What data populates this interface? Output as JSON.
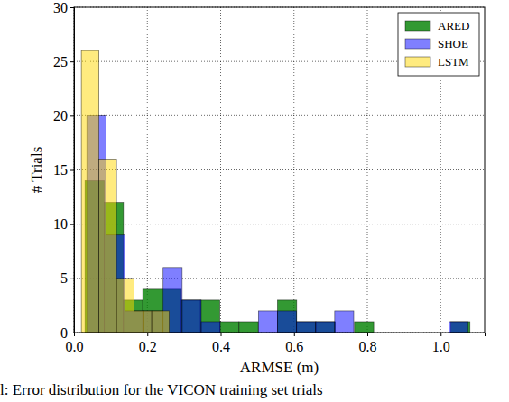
{
  "chart_data": {
    "type": "histogram",
    "caption": "l: Error distribution for the VICON training set trials",
    "x_label": "ARMSE (m)",
    "y_label": "# Trials",
    "xlim": [
      0,
      1.12
    ],
    "ylim": [
      0,
      30
    ],
    "xticks": [
      {
        "value": 0,
        "label": "0.0"
      },
      {
        "value": 0.2,
        "label": "0.2"
      },
      {
        "value": 0.4,
        "label": "0.4"
      },
      {
        "value": 0.6,
        "label": "0.6"
      },
      {
        "value": 0.8,
        "label": "0.8"
      },
      {
        "value": 1,
        "label": "1.0"
      }
    ],
    "yticks": [
      0,
      5,
      10,
      15,
      20,
      25,
      30
    ],
    "grid": true,
    "legend": "upper right",
    "series": [
      {
        "name": "ARED",
        "color": "#008000",
        "bins": [
          0.03,
          0.0825,
          0.135,
          0.1875,
          0.24,
          0.2925,
          0.345,
          0.3975,
          0.45,
          0.5025,
          0.555,
          0.6075,
          0.66,
          0.7125,
          0.765,
          0.8175,
          0.87,
          0.9225,
          0.975,
          1.0275,
          1.08
        ],
        "values": [
          14,
          12,
          3,
          4,
          4,
          3,
          3,
          1,
          1,
          0,
          3,
          1,
          1,
          0,
          1,
          0,
          0,
          0,
          0,
          1
        ]
      },
      {
        "name": "SHOE",
        "color": "#0000ff",
        "bins": [
          0.035,
          0.087,
          0.139,
          0.191,
          0.243,
          0.295,
          0.347,
          0.399,
          0.451,
          0.503,
          0.555,
          0.607,
          0.659,
          0.711,
          0.763,
          0.815,
          0.867,
          0.919,
          0.971,
          1.023,
          1.075
        ],
        "values": [
          20,
          9,
          2,
          2,
          6,
          3,
          1,
          0,
          0,
          2,
          2,
          1,
          1,
          2,
          0,
          0,
          0,
          0,
          0,
          1
        ]
      },
      {
        "name": "LSTM",
        "color": "#ffd700",
        "bins": [
          0.02,
          0.068,
          0.116,
          0.164,
          0.212,
          0.26
        ],
        "values": [
          26,
          16,
          5,
          2,
          2
        ]
      }
    ]
  }
}
